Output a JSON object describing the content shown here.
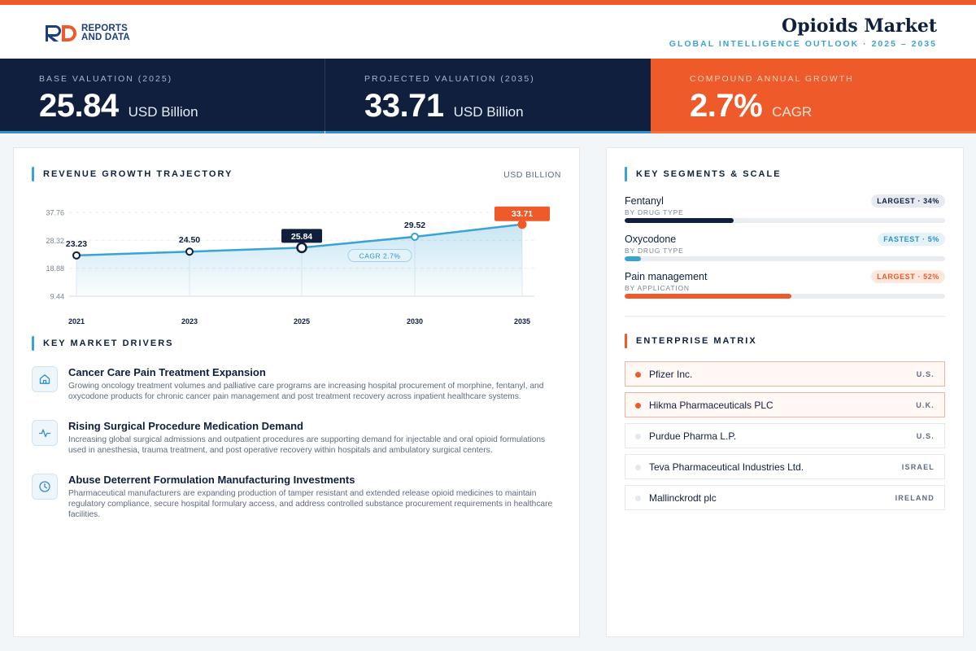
{
  "brand": {
    "logo_line1": "REPORTS",
    "logo_line2": "AND DATA"
  },
  "header": {
    "title": "Opioids Market",
    "subtitle": "GLOBAL INTELLIGENCE OUTLOOK  ·  2025 – 2035"
  },
  "kpis": [
    {
      "label": "BASE VALUATION (2025)",
      "value": "25.84",
      "unit": "USD Billion"
    },
    {
      "label": "PROJECTED VALUATION (2035)",
      "value": "33.71",
      "unit": "USD Billion"
    },
    {
      "label": "COMPOUND ANNUAL GROWTH",
      "value": "2.7%",
      "unit": "CAGR"
    }
  ],
  "chart_section": {
    "title": "REVENUE GROWTH TRAJECTORY",
    "unit": "USD BILLION"
  },
  "chart_data": {
    "type": "area",
    "x": [
      "2021",
      "2023",
      "2025",
      "2030",
      "2035"
    ],
    "values": [
      23.23,
      24.5,
      25.84,
      29.52,
      33.71
    ],
    "value_labels": [
      "23.23",
      "24.50",
      "25.84",
      "29.52",
      "33.71"
    ],
    "y_ticks": [
      "37.76",
      "28.32",
      "18.88",
      "9.44"
    ],
    "y_tick_values": [
      37.76,
      28.32,
      18.88,
      9.44
    ],
    "ylim": [
      9.44,
      37.76
    ],
    "annotation": "CAGR 2.7%",
    "highlight": [
      "2025",
      "2035"
    ],
    "grid": true,
    "colors": {
      "line": "#3aa3d6",
      "dark": "#0f1f3d",
      "accent": "#ee5a2a"
    }
  },
  "drivers_section": {
    "title": "KEY MARKET DRIVERS"
  },
  "drivers": [
    {
      "icon": "home-icon",
      "title": "Cancer Care Pain Treatment Expansion",
      "text": "Growing oncology treatment volumes and palliative care programs are increasing hospital procurement of morphine, fentanyl, and oxycodone products for chronic cancer pain management and post treatment recovery across inpatient healthcare systems."
    },
    {
      "icon": "pulse-icon",
      "title": "Rising Surgical Procedure Medication Demand",
      "text": "Increasing global surgical admissions and outpatient procedures are supporting demand for injectable and oral opioid formulations used in anesthesia, trauma treatment, and post operative recovery within hospitals and ambulatory surgical centers."
    },
    {
      "icon": "clock-icon",
      "title": "Abuse Deterrent Formulation Manufacturing Investments",
      "text": "Pharmaceutical manufacturers are expanding production of tamper resistant and extended release opioid medicines to maintain regulatory compliance, secure hospital formulary access, and address controlled substance procurement requirements in healthcare facilities."
    }
  ],
  "segments_section": {
    "title": "KEY SEGMENTS & SCALE"
  },
  "segments": [
    {
      "name": "Fentanyl",
      "category": "BY DRUG TYPE",
      "badge": "LARGEST · 34%",
      "share": 0.34,
      "color": "#0f1f3d"
    },
    {
      "name": "Oxycodone",
      "category": "BY DRUG TYPE",
      "badge": "FASTEST · 5%",
      "share": 0.05,
      "color": "#3aa3d6"
    },
    {
      "name": "Pain management",
      "category": "BY APPLICATION",
      "badge": "LARGEST · 52%",
      "share": 0.52,
      "color": "#ee5a2a"
    }
  ],
  "matrix_section": {
    "title": "ENTERPRISE MATRIX"
  },
  "companies": [
    {
      "name": "Pfizer Inc.",
      "country": "U.S."
    },
    {
      "name": "Hikma Pharmaceuticals PLC",
      "country": "U.K."
    },
    {
      "name": "Purdue Pharma L.P.",
      "country": "U.S."
    },
    {
      "name": "Teva Pharmaceutical Industries Ltd.",
      "country": "ISRAEL"
    },
    {
      "name": "Mallinckrodt plc",
      "country": "IRELAND"
    }
  ]
}
